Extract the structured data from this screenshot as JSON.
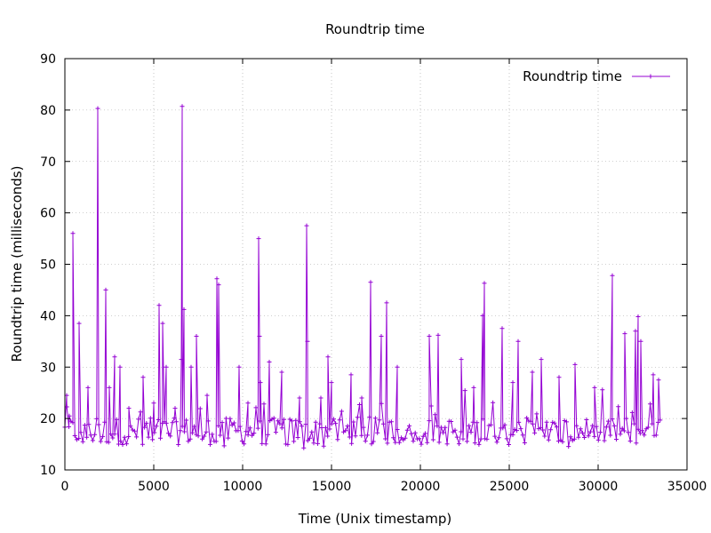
{
  "chart_data": {
    "type": "line",
    "title": "Roundtrip time",
    "xlabel": "Time (Unix timestamp)",
    "ylabel": "Roundtrip time (milliseconds)",
    "xlim": [
      0,
      35000
    ],
    "ylim": [
      10,
      90
    ],
    "xticks": [
      0,
      5000,
      10000,
      15000,
      20000,
      25000,
      30000,
      35000
    ],
    "yticks": [
      10,
      20,
      30,
      40,
      50,
      60,
      70,
      80,
      90
    ],
    "xtick_labels": [
      "0",
      "5000",
      "10000",
      "15000",
      "20000",
      "25000",
      "30000",
      "35000"
    ],
    "ytick_labels": [
      "10",
      "20",
      "30",
      "40",
      "50",
      "60",
      "70",
      "80",
      "90"
    ],
    "grid": true,
    "legend_position": "top-right",
    "color": "#9400D3",
    "series": [
      {
        "name": "Roundtrip time",
        "x_start": 0,
        "x_step": 112,
        "baseline": 17.5,
        "noise_amplitude": 2.6,
        "spikes": [
          {
            "x": 100,
            "y": 24.5
          },
          {
            "x": 250,
            "y": 20.5
          },
          {
            "x": 450,
            "y": 56
          },
          {
            "x": 800,
            "y": 38.5
          },
          {
            "x": 1300,
            "y": 26
          },
          {
            "x": 1850,
            "y": 80.3
          },
          {
            "x": 2300,
            "y": 45
          },
          {
            "x": 2500,
            "y": 26
          },
          {
            "x": 2800,
            "y": 32
          },
          {
            "x": 3100,
            "y": 30
          },
          {
            "x": 3600,
            "y": 22
          },
          {
            "x": 4400,
            "y": 28
          },
          {
            "x": 5000,
            "y": 23
          },
          {
            "x": 5300,
            "y": 42
          },
          {
            "x": 5500,
            "y": 38.5
          },
          {
            "x": 5700,
            "y": 30
          },
          {
            "x": 6200,
            "y": 22
          },
          {
            "x": 6550,
            "y": 31.5
          },
          {
            "x": 6600,
            "y": 80.7
          },
          {
            "x": 6700,
            "y": 41.2
          },
          {
            "x": 7100,
            "y": 30
          },
          {
            "x": 7400,
            "y": 36
          },
          {
            "x": 8000,
            "y": 24.5
          },
          {
            "x": 8550,
            "y": 47.2
          },
          {
            "x": 8650,
            "y": 46
          },
          {
            "x": 9800,
            "y": 30
          },
          {
            "x": 10300,
            "y": 23
          },
          {
            "x": 10900,
            "y": 55
          },
          {
            "x": 10950,
            "y": 36
          },
          {
            "x": 11000,
            "y": 27
          },
          {
            "x": 11500,
            "y": 31
          },
          {
            "x": 12200,
            "y": 29
          },
          {
            "x": 13200,
            "y": 24
          },
          {
            "x": 13600,
            "y": 57.5
          },
          {
            "x": 13650,
            "y": 35
          },
          {
            "x": 14400,
            "y": 24
          },
          {
            "x": 14800,
            "y": 32
          },
          {
            "x": 15000,
            "y": 27
          },
          {
            "x": 16100,
            "y": 28.5
          },
          {
            "x": 16700,
            "y": 24
          },
          {
            "x": 17200,
            "y": 46.5
          },
          {
            "x": 17800,
            "y": 36
          },
          {
            "x": 18100,
            "y": 42.5
          },
          {
            "x": 18700,
            "y": 30
          },
          {
            "x": 20500,
            "y": 36
          },
          {
            "x": 21000,
            "y": 36.2
          },
          {
            "x": 22300,
            "y": 31.5
          },
          {
            "x": 23000,
            "y": 26
          },
          {
            "x": 23500,
            "y": 40
          },
          {
            "x": 23600,
            "y": 46.3
          },
          {
            "x": 24600,
            "y": 37.5
          },
          {
            "x": 25200,
            "y": 27
          },
          {
            "x": 25500,
            "y": 35
          },
          {
            "x": 26300,
            "y": 29
          },
          {
            "x": 26800,
            "y": 31.5
          },
          {
            "x": 27800,
            "y": 28
          },
          {
            "x": 28700,
            "y": 30.5
          },
          {
            "x": 29800,
            "y": 26
          },
          {
            "x": 30800,
            "y": 47.8
          },
          {
            "x": 31500,
            "y": 36.5
          },
          {
            "x": 32100,
            "y": 37
          },
          {
            "x": 32250,
            "y": 39.8
          },
          {
            "x": 32400,
            "y": 35
          },
          {
            "x": 33100,
            "y": 28.5
          },
          {
            "x": 33400,
            "y": 27.5
          }
        ]
      }
    ]
  }
}
